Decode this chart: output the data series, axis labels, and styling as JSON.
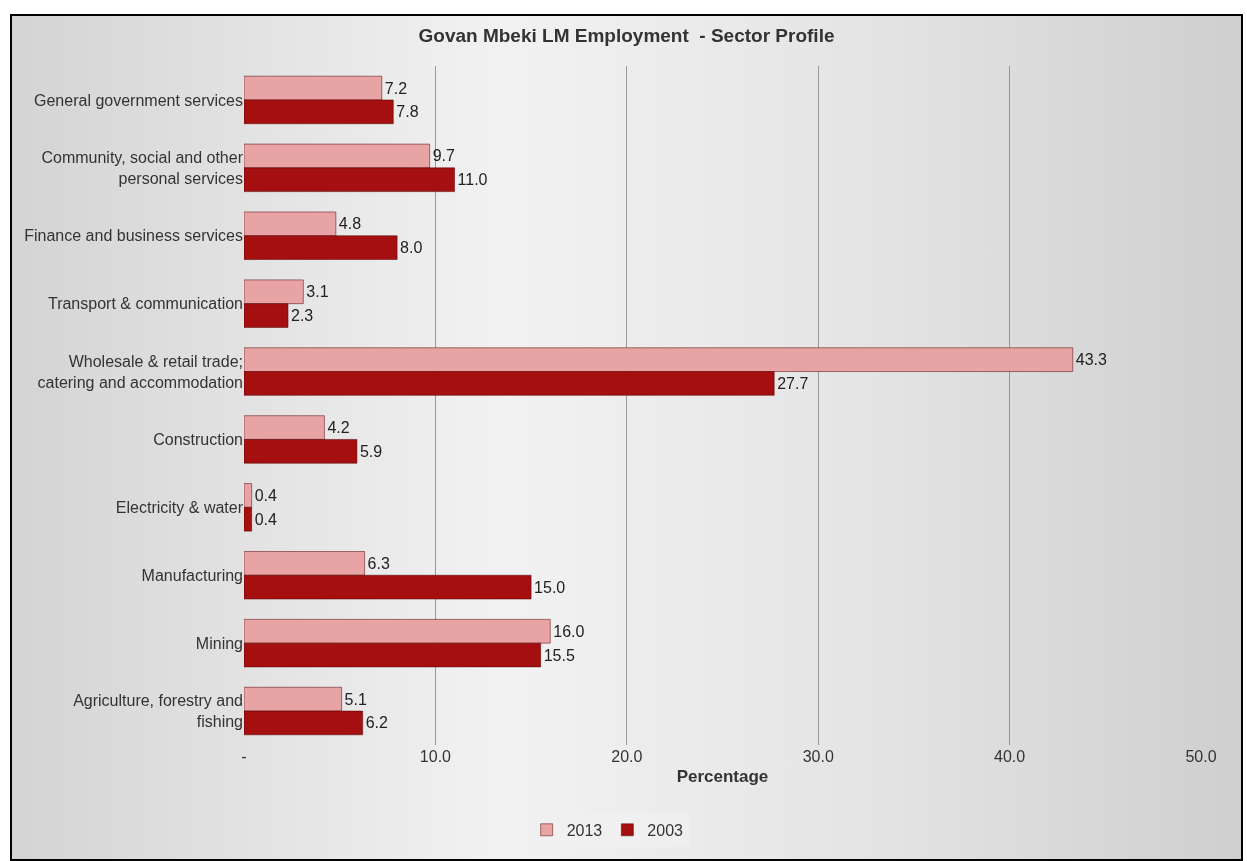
{
  "chart_data": {
    "type": "bar",
    "orientation": "horizontal",
    "title": "Govan Mbeki LM Employment  - Sector Profile",
    "xlabel": "Percentage",
    "categories": [
      "General government services",
      "Community, social and other personal services",
      "Finance and business services",
      "Transport & communication",
      "Wholesale & retail trade; catering and accommodation",
      "Construction",
      "Electricity & water",
      "Manufacturing",
      "Mining",
      "Agriculture, forestry and fishing"
    ],
    "series": [
      {
        "name": "2013",
        "color": "#e8a4a4",
        "values": [
          7.2,
          9.7,
          4.8,
          3.1,
          43.3,
          4.2,
          0.4,
          6.3,
          16.0,
          5.1
        ],
        "value_labels": [
          "7.2",
          "9.7",
          "4.8",
          "3.1",
          "43.3",
          "4.2",
          "0.4",
          "6.3",
          "16.0",
          "5.1"
        ]
      },
      {
        "name": "2003",
        "color": "#a50f0f",
        "values": [
          7.8,
          11.0,
          8.0,
          2.3,
          27.7,
          5.9,
          0.4,
          15.0,
          15.5,
          6.2
        ],
        "value_labels": [
          "7.8",
          "11.0",
          "8.0",
          "2.3",
          "27.7",
          "5.9",
          "0.4",
          "15.0",
          "15.5",
          "6.2"
        ]
      }
    ],
    "xlim": [
      0,
      50
    ],
    "xticks": [
      {
        "value": 0,
        "label": "-"
      },
      {
        "value": 10,
        "label": "10.0"
      },
      {
        "value": 20,
        "label": "20.0"
      },
      {
        "value": 30,
        "label": "30.0"
      },
      {
        "value": 40,
        "label": "40.0"
      },
      {
        "value": 50,
        "label": "50.0"
      }
    ],
    "grid": "x",
    "legend": "bottom"
  }
}
